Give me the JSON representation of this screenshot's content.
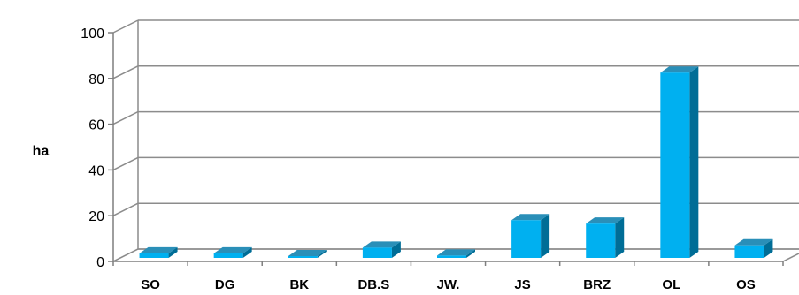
{
  "chart_data": {
    "type": "bar",
    "style": "3d-column",
    "categories": [
      "SO",
      "DG",
      "BK",
      "DB.S",
      "JW.",
      "JS",
      "BRZ",
      "OL",
      "OS"
    ],
    "values": [
      2,
      2,
      0.5,
      4.5,
      1,
      16.5,
      15,
      81,
      5.5
    ],
    "ylabel": "ha",
    "xlabel": "",
    "title": "",
    "ylim": [
      0,
      100
    ],
    "yticks": [
      0,
      20,
      40,
      60,
      80,
      100
    ],
    "grid": true,
    "legend": "none",
    "colors": {
      "bar_front": "#00b0f0",
      "bar_side": "#006d96",
      "bar_top": "#2a8fb8",
      "grid": "#8c8c8c",
      "axis": "#7f7f7f"
    }
  }
}
